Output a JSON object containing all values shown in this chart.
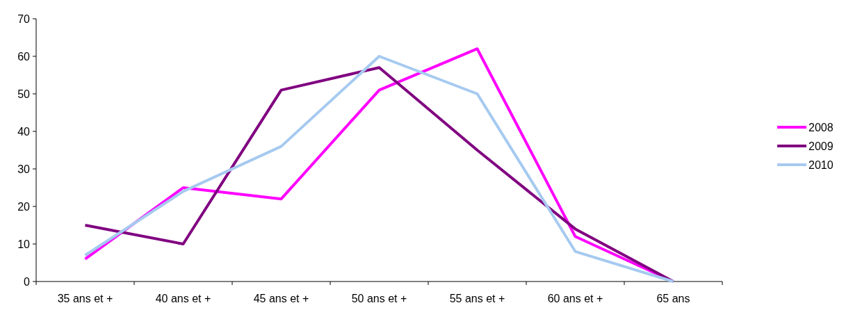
{
  "chart_data": {
    "type": "line",
    "categories": [
      "35 ans et +",
      "40 ans et +",
      "45 ans et +",
      "50 ans et +",
      "55 ans et +",
      "60 ans et +",
      "65 ans"
    ],
    "series": [
      {
        "name": "2008",
        "color": "#ff00ff",
        "values": [
          6,
          25,
          22,
          51,
          62,
          12,
          0
        ]
      },
      {
        "name": "2009",
        "color": "#800080",
        "values": [
          15,
          10,
          51,
          57,
          35,
          14,
          0
        ]
      },
      {
        "name": "2010",
        "color": "#a6caf0",
        "values": [
          7,
          24,
          36,
          60,
          50,
          8,
          0
        ]
      }
    ],
    "ylim": [
      0,
      70
    ],
    "yticks": [
      0,
      10,
      20,
      30,
      40,
      50,
      60,
      70
    ],
    "legend": "right",
    "grid": false,
    "marker": "none",
    "line_style": "solid"
  }
}
